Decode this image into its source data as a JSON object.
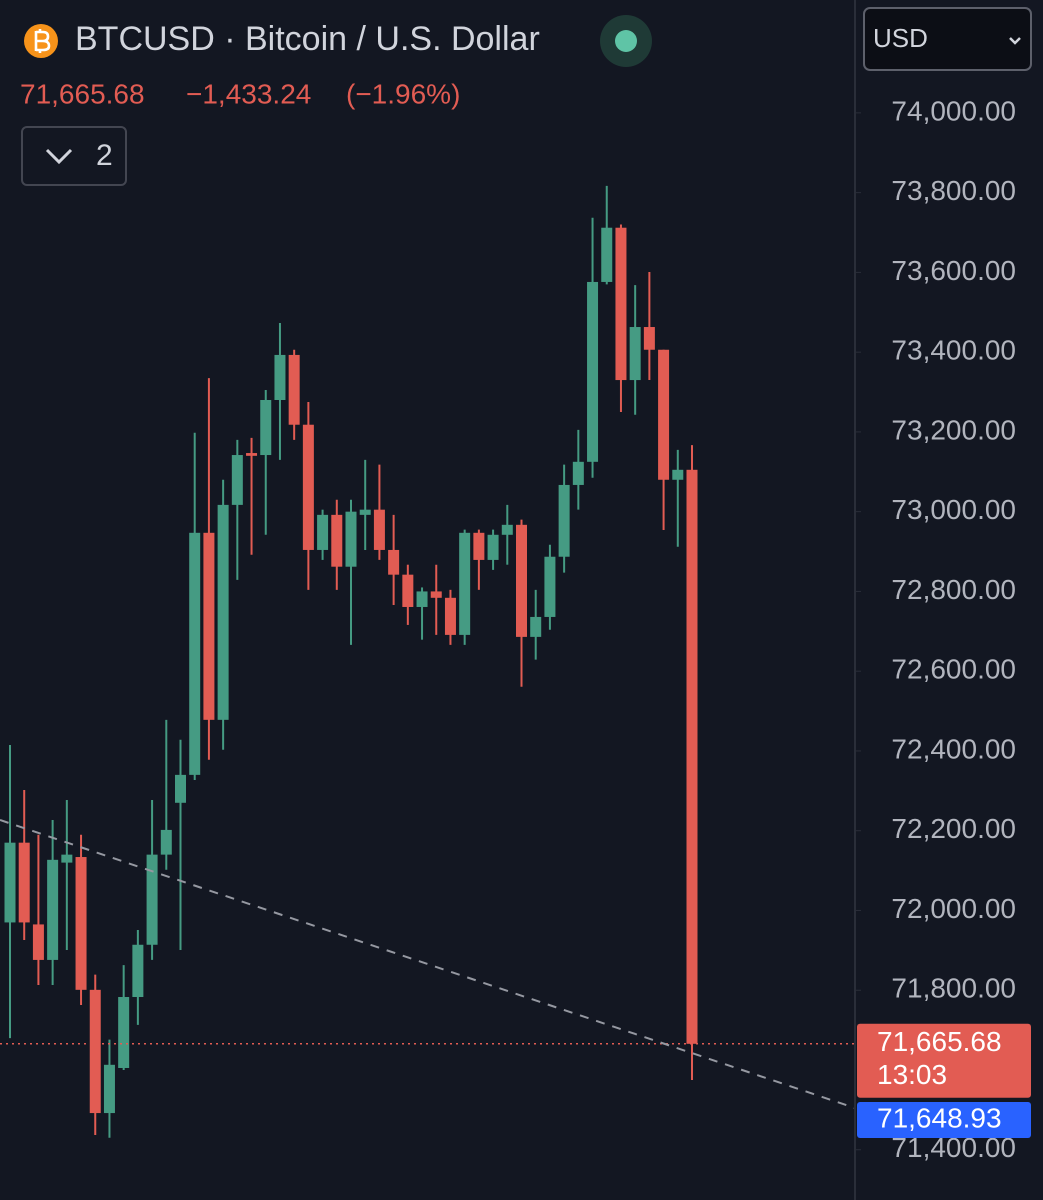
{
  "chart_data": {
    "type": "candlestick",
    "title": "BTCUSD · Bitcoin / U.S. Dollar",
    "price_change": "−1,433.24",
    "percent_change": "(−1.96%)",
    "indicator_count": "2",
    "currency": "USD",
    "countdown": "13:03",
    "up_color": "#459b83",
    "down_color": "#e25c53",
    "ylim": [
      71274,
      74283
    ],
    "yticks": [
      {
        "value": 71400,
        "label": "71,400.00"
      },
      {
        "value": 71800,
        "label": "71,800.00"
      },
      {
        "value": 72000,
        "label": "72,000.00"
      },
      {
        "value": 72200,
        "label": "72,200.00"
      },
      {
        "value": 72400,
        "label": "72,400.00"
      },
      {
        "value": 72600,
        "label": "72,600.00"
      },
      {
        "value": 72800,
        "label": "72,800.00"
      },
      {
        "value": 73000,
        "label": "73,000.00"
      },
      {
        "value": 73200,
        "label": "73,200.00"
      },
      {
        "value": 73400,
        "label": "73,400.00"
      },
      {
        "value": 73600,
        "label": "73,600.00"
      },
      {
        "value": 73800,
        "label": "73,800.00"
      },
      {
        "value": 74000,
        "label": "74,000.00"
      }
    ],
    "last_price": {
      "value": 71665.68,
      "label": "71,665.68"
    },
    "bid_price": {
      "value": 71648.93,
      "label": "71,648.93"
    },
    "open": [
      71970,
      72170,
      71965,
      71876,
      72120,
      72134,
      71801,
      71492,
      71605,
      71783,
      71914,
      72140,
      72270,
      72340,
      72947,
      72478,
      73017,
      73147,
      73142,
      73280,
      73393,
      73218,
      72904,
      72992,
      72862,
      72992,
      73005,
      72904,
      72842,
      72761,
      72800,
      72784,
      72691,
      72947,
      72879,
      72942,
      72967,
      72686,
      72736,
      72887,
      73067,
      73125,
      73576,
      73712,
      73330,
      73463,
      73406,
      73080,
      73105
    ],
    "high": [
      72415,
      72302,
      72190,
      72227,
      72277,
      72190,
      71839,
      71676,
      71863,
      71951,
      72277,
      72478,
      72428,
      73198,
      73335,
      73080,
      73180,
      73185,
      73305,
      73473,
      73406,
      73275,
      73005,
      73030,
      73030,
      73130,
      73118,
      72992,
      72867,
      72810,
      72867,
      72804,
      72955,
      72955,
      72955,
      73017,
      72980,
      72804,
      72917,
      73118,
      73205,
      73737,
      73817,
      73720,
      73568,
      73601,
      73406,
      73155,
      73167
    ],
    "low": [
      71680,
      71926,
      71813,
      71813,
      71901,
      71763,
      71437,
      71430,
      71600,
      71713,
      71876,
      72102,
      71901,
      72327,
      72378,
      72403,
      72829,
      72892,
      72942,
      73130,
      73180,
      72804,
      72879,
      72804,
      72666,
      72904,
      72879,
      72766,
      72716,
      72679,
      72691,
      72666,
      72666,
      72804,
      72854,
      72867,
      72561,
      72629,
      72704,
      72847,
      73005,
      73085,
      73570,
      73250,
      73243,
      73330,
      72954,
      72912,
      71575
    ],
    "close": [
      72170,
      71970,
      71876,
      72127,
      72140,
      71801,
      71492,
      71613,
      71783,
      71914,
      72140,
      72202,
      72340,
      72947,
      72478,
      73017,
      73142,
      73140,
      73280,
      73393,
      73218,
      72904,
      72992,
      72862,
      73000,
      73005,
      72904,
      72842,
      72761,
      72800,
      72784,
      72691,
      72947,
      72879,
      72942,
      72967,
      72686,
      72736,
      72887,
      73067,
      73125,
      73576,
      73712,
      73330,
      73463,
      73406,
      73080,
      73105,
      71665.68
    ]
  }
}
